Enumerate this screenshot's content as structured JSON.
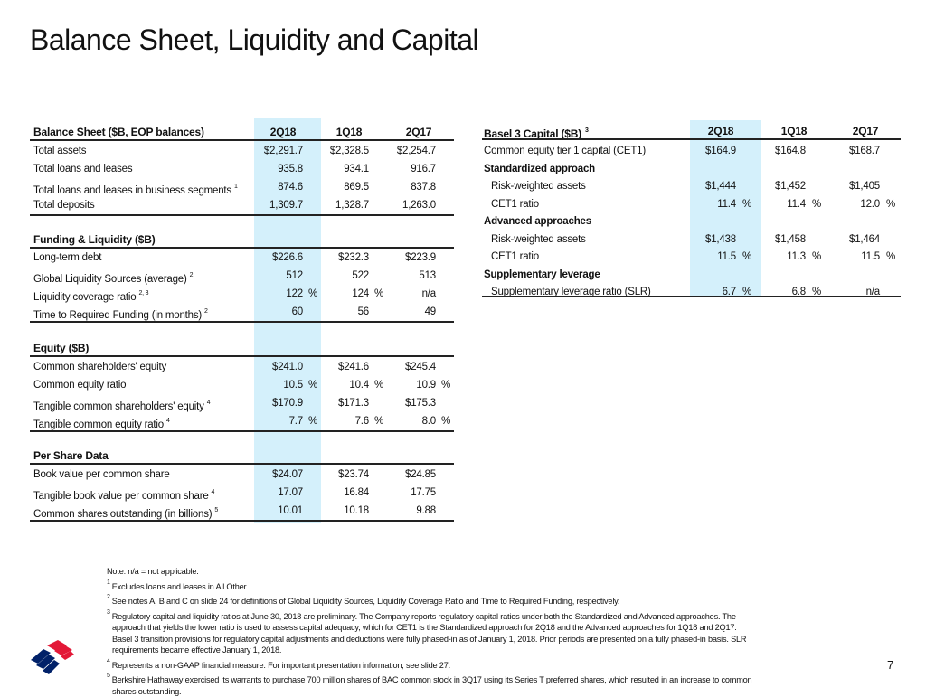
{
  "title": "Balance Sheet, Liquidity and Capital",
  "columns": [
    "2Q18",
    "1Q18",
    "2Q17"
  ],
  "left_sections": [
    {
      "heading": "Balance Sheet ($B, EOP balances)",
      "show_cols": true,
      "rows": [
        {
          "label": "Total assets",
          "v": [
            "$2,291.7",
            "$2,328.5",
            "$2,254.7"
          ]
        },
        {
          "label": "Total loans and leases",
          "v": [
            "935.8",
            "934.1",
            "916.7"
          ]
        },
        {
          "label": "Total loans and leases in business segments",
          "sup": "1",
          "v": [
            "874.6",
            "869.5",
            "837.8"
          ]
        },
        {
          "label": "Total deposits",
          "v": [
            "1,309.7",
            "1,328.7",
            "1,263.0"
          ]
        }
      ]
    },
    {
      "heading": "Funding & Liquidity ($B)",
      "rows": [
        {
          "label": "Long-term debt",
          "v": [
            "$226.6",
            "$232.3",
            "$223.9"
          ]
        },
        {
          "label": "Global Liquidity Sources (average)",
          "sup": "2",
          "v": [
            "512",
            "522",
            "513"
          ]
        },
        {
          "label": "Liquidity coverage ratio",
          "sup": "2, 3",
          "v": [
            "122",
            "124",
            "n/a"
          ],
          "u": [
            "%",
            "%",
            ""
          ]
        },
        {
          "label": "Time to Required Funding (in months)",
          "sup": "2",
          "v": [
            "60",
            "56",
            "49"
          ]
        }
      ]
    },
    {
      "heading": "Equity ($B)",
      "rows": [
        {
          "label": "Common shareholders' equity",
          "v": [
            "$241.0",
            "$241.6",
            "$245.4"
          ]
        },
        {
          "label": "Common equity ratio",
          "v": [
            "10.5",
            "10.4",
            "10.9"
          ],
          "u": [
            "%",
            "%",
            "%"
          ]
        },
        {
          "label": "Tangible common shareholders' equity",
          "sup": "4",
          "v": [
            "$170.9",
            "$171.3",
            "$175.3"
          ]
        },
        {
          "label": "Tangible common equity ratio",
          "sup": "4",
          "v": [
            "7.7",
            "7.6",
            "8.0"
          ],
          "u": [
            "%",
            "%",
            "%"
          ]
        }
      ]
    },
    {
      "heading": "Per Share Data",
      "rows": [
        {
          "label": "Book value per common share",
          "v": [
            "$24.07",
            "$23.74",
            "$24.85"
          ]
        },
        {
          "label": "Tangible book value per common share",
          "sup": "4",
          "v": [
            "17.07",
            "16.84",
            "17.75"
          ]
        },
        {
          "label": "Common shares outstanding (in billions)",
          "sup": "5",
          "v": [
            "10.01",
            "10.18",
            "9.88"
          ]
        }
      ]
    }
  ],
  "right_table": {
    "heading": "Basel 3 Capital ($B)",
    "heading_sup": "3",
    "rows": [
      {
        "label": "Common equity tier 1 capital (CET1)",
        "v": [
          "$164.9",
          "$164.8",
          "$168.7"
        ]
      },
      {
        "label": "Standardized approach",
        "bold": true
      },
      {
        "label": "Risk-weighted assets",
        "indent": true,
        "v": [
          "$1,444",
          "$1,452",
          "$1,405"
        ]
      },
      {
        "label": "CET1 ratio",
        "indent": true,
        "v": [
          "11.4",
          "11.4",
          "12.0"
        ],
        "u": [
          "%",
          "%",
          "%"
        ]
      },
      {
        "label": "Advanced approaches",
        "bold": true
      },
      {
        "label": "Risk-weighted assets",
        "indent": true,
        "v": [
          "$1,438",
          "$1,458",
          "$1,464"
        ]
      },
      {
        "label": "CET1 ratio",
        "indent": true,
        "v": [
          "11.5",
          "11.3",
          "11.5"
        ],
        "u": [
          "%",
          "%",
          "%"
        ]
      },
      {
        "label": "Supplementary leverage",
        "bold": true
      },
      {
        "label": "Supplementary leverage ratio (SLR)",
        "indent": true,
        "v": [
          "6.7",
          "6.8",
          "n/a"
        ],
        "u": [
          "%",
          "%",
          ""
        ]
      }
    ]
  },
  "notes": [
    {
      "text": "Note: n/a = not applicable."
    },
    {
      "sup": "1",
      "text": "Excludes loans and leases in All Other."
    },
    {
      "sup": "2",
      "text": "See notes A, B and C on slide 24 for definitions of Global Liquidity Sources, Liquidity Coverage Ratio and Time to Required Funding, respectively."
    },
    {
      "sup": "3",
      "text": "Regulatory capital and liquidity ratios at June 30, 2018 are preliminary. The Company reports regulatory capital ratios under both the Standardized and Advanced approaches. The"
    },
    {
      "cont": true,
      "text": "approach that yields the lower ratio is used to assess capital adequacy, which for CET1 is the Standardized approach for 2Q18 and the Advanced approaches for 1Q18 and 2Q17."
    },
    {
      "cont": true,
      "text": "Basel 3 transition provisions for regulatory capital adjustments and deductions were fully phased-in as of January 1, 2018. Prior periods are presented on a fully phased-in basis. SLR"
    },
    {
      "cont": true,
      "text": "requirements became effective January 1, 2018."
    },
    {
      "sup": "4",
      "text": "Represents a non-GAAP financial measure. For important presentation information, see slide 27."
    },
    {
      "sup": "5",
      "text": "Berkshire Hathaway exercised its warrants to purchase 700 million shares of BAC common stock in 3Q17 using its Series T preferred shares, which resulted in an increase to common"
    },
    {
      "cont": true,
      "text": "shares outstanding."
    }
  ],
  "page_number": "7",
  "colors": {
    "shade": "#d4f0fb",
    "logo_red": "#e31837",
    "logo_blue": "#012169"
  }
}
